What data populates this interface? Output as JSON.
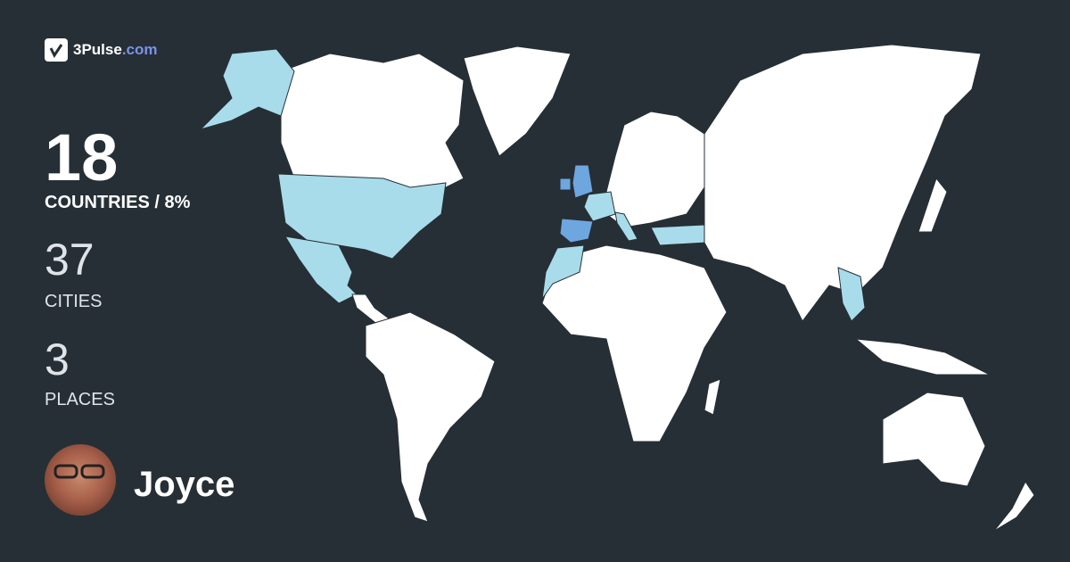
{
  "brand": {
    "name": "3Pulse",
    "domain": ".com",
    "icon": "checkmark-pulse-icon"
  },
  "stats": {
    "countries": {
      "value": "18",
      "label": "COUNTRIES / 8%"
    },
    "cities": {
      "value": "37",
      "label": "CITIES"
    },
    "places": {
      "value": "3",
      "label": "PLACES"
    }
  },
  "user": {
    "name": "Joyce"
  },
  "colors": {
    "background": "#262f36",
    "land": "#ffffff",
    "visited": "#a9dcea",
    "highlighted": "#6ea6e0",
    "brand_accent": "#7b93e6"
  },
  "map": {
    "visited_regions": [
      "Alaska",
      "United States",
      "Mexico",
      "France",
      "Italy",
      "Turkey",
      "Morocco",
      "Western Sahara",
      "Thailand",
      "Laos",
      "Cambodia"
    ],
    "highlighted_regions": [
      "United Kingdom",
      "Ireland",
      "Spain"
    ]
  }
}
